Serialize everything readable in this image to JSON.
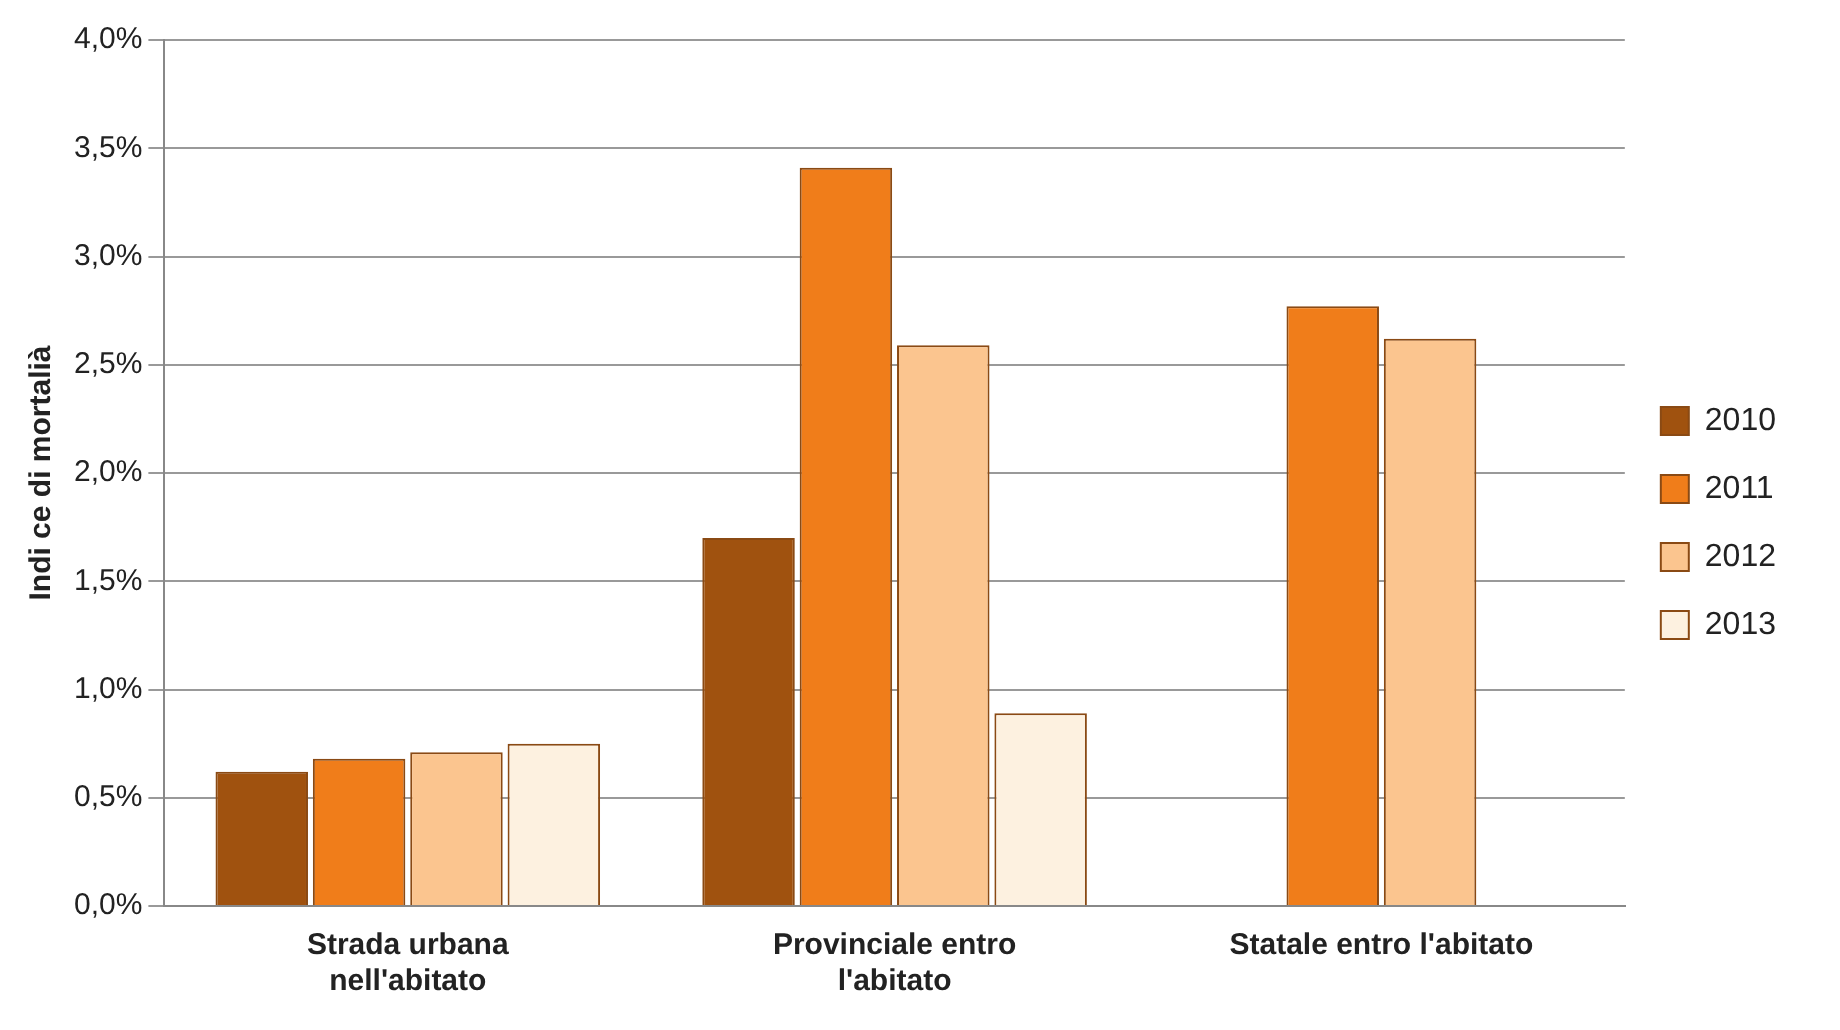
{
  "chart_data": {
    "type": "bar",
    "ylabel": "Indi ce di mortalià",
    "categories": [
      "Strada urbana nell'abitato",
      "Provinciale entro l'abitato",
      "Statale entro l'abitato"
    ],
    "series": [
      {
        "name": "2010",
        "color": "#a0520f",
        "values": [
          0.62,
          1.7,
          null
        ]
      },
      {
        "name": "2011",
        "color": "#f07d1a",
        "values": [
          0.68,
          3.41,
          2.77
        ]
      },
      {
        "name": "2012",
        "color": "#fbc58f",
        "values": [
          0.71,
          2.59,
          2.62
        ]
      },
      {
        "name": "2013",
        "color": "#fdf1e0",
        "values": [
          0.75,
          0.89,
          null
        ]
      }
    ],
    "ylim": [
      0,
      4
    ],
    "yticks": [
      {
        "value": 0,
        "label": "0,0%"
      },
      {
        "value": 0.5,
        "label": "0,5%"
      },
      {
        "value": 1,
        "label": "1,0%"
      },
      {
        "value": 1.5,
        "label": "1,5%"
      },
      {
        "value": 2,
        "label": "2,0%"
      },
      {
        "value": 2.5,
        "label": "2,5%"
      },
      {
        "value": 3,
        "label": "3,0%"
      },
      {
        "value": 3.5,
        "label": "3,5%"
      },
      {
        "value": 4,
        "label": "4,0%"
      }
    ],
    "grid": "y",
    "legend": "right"
  }
}
